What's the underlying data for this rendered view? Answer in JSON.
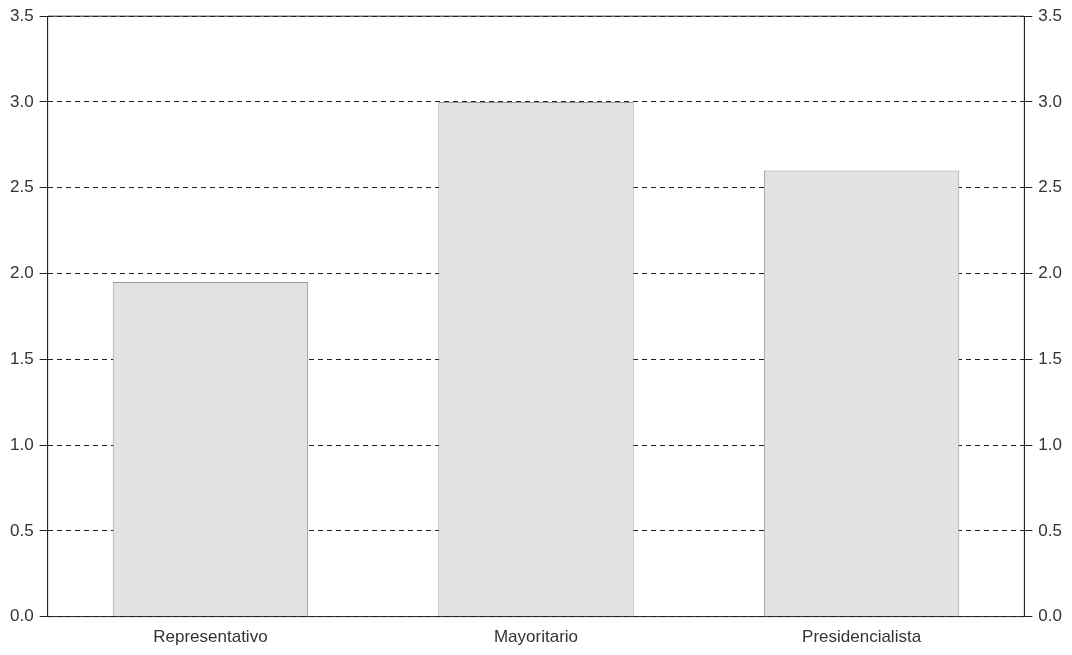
{
  "chart_data": {
    "type": "bar",
    "categories": [
      "Representativo",
      "Mayoritario",
      "Presidencialista"
    ],
    "values": [
      1.95,
      3.0,
      2.6
    ],
    "color": "#e2e2e2",
    "ylim": [
      0,
      3.5
    ],
    "yticks": [
      {
        "value": 0,
        "label": "0.0"
      },
      {
        "value": 0.5,
        "label": "0.5"
      },
      {
        "value": 1,
        "label": "1.0"
      },
      {
        "value": 1.5,
        "label": "1.5"
      },
      {
        "value": 2,
        "label": "2.0"
      },
      {
        "value": 2.5,
        "label": "2.5"
      },
      {
        "value": 3,
        "label": "3.0"
      },
      {
        "value": 3.5,
        "label": "3.5"
      }
    ],
    "y2lim": [
      0,
      3.5
    ],
    "y2ticks": [
      {
        "value": 0,
        "label": "0.0"
      },
      {
        "value": 0.5,
        "label": "0.5"
      },
      {
        "value": 1,
        "label": "1.0"
      },
      {
        "value": 1.5,
        "label": "1.5"
      },
      {
        "value": 2,
        "label": "2.0"
      },
      {
        "value": 2.5,
        "label": "2.5"
      },
      {
        "value": 3,
        "label": "3.0"
      },
      {
        "value": 3.5,
        "label": "3.5"
      }
    ],
    "grid": "y",
    "legend": false,
    "line_style": "dashed"
  }
}
